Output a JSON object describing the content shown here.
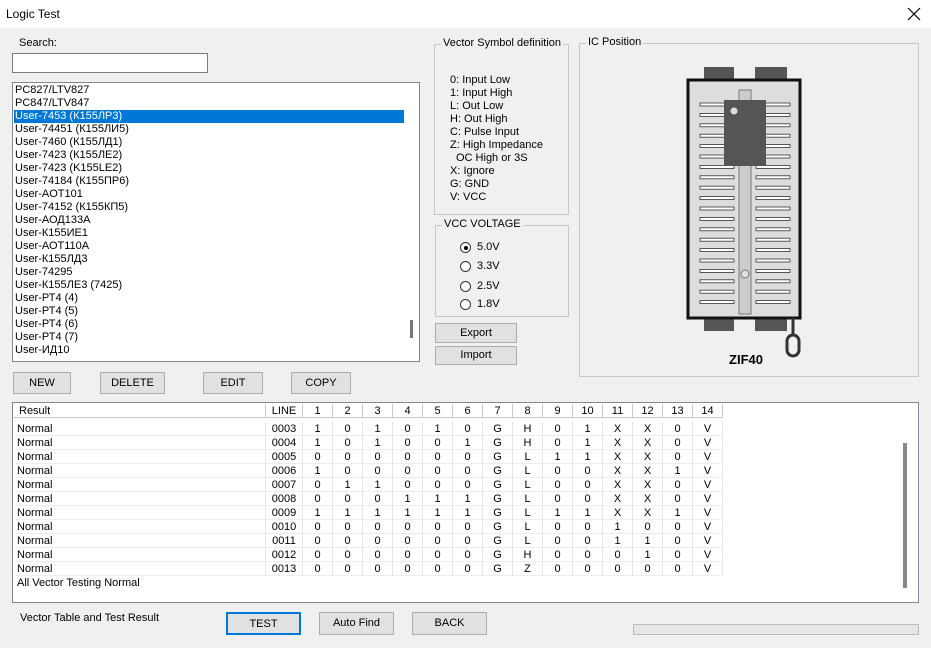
{
  "window": {
    "title": "Logic Test"
  },
  "search": {
    "label": "Search:"
  },
  "device_list": {
    "items": [
      "PC827/LTV827",
      "PC847/LTV847",
      "User-7453 (К155ЛР3)",
      "User-74451 (К155ЛИ5)",
      "User-7460 (К155ЛД1)",
      "User-7423 (К155ЛЕ2)",
      "User-7423 (K155LE2)",
      "User-74184 (К155ПР6)",
      "User-AOT101",
      "User-74152 (К155КП5)",
      "User-АОД133А",
      "User-К155ИЕ1",
      "User-АОТ110А",
      "User-К155ЛД3",
      "User-74295",
      "User-К155ЛЕ3 (7425)",
      "User-РТ4 (4)",
      "User-РТ4 (5)",
      "User-РТ4 (6)",
      "User-РТ4 (7)",
      "User-ИД10"
    ],
    "selected_index": 2
  },
  "vector_symbols": {
    "title": "Vector Symbol definition",
    "lines": [
      "0: Input Low",
      "1: Input High",
      "L: Out Low",
      "H: Out High",
      "C: Pulse Input",
      "Z: High Impedance",
      "OC High or 3S",
      "X: Ignore",
      "G: GND",
      "V: VCC"
    ]
  },
  "vcc_voltage": {
    "title": "VCC VOLTAGE",
    "options": [
      "5.0V",
      "3.3V",
      "2.5V",
      "1.8V"
    ],
    "selected_index": 0
  },
  "ic_position": {
    "title": "IC Position",
    "socket": "ZIF40"
  },
  "buttons": {
    "export": "Export",
    "import": "Import",
    "new": "NEW",
    "delete": "DELETE",
    "edit": "EDIT",
    "copy": "COPY",
    "test": "TEST",
    "auto_find": "Auto Find",
    "back": "BACK"
  },
  "table": {
    "columns": [
      "Result",
      "LINE",
      "1",
      "2",
      "3",
      "4",
      "5",
      "6",
      "7",
      "8",
      "9",
      "10",
      "11",
      "12",
      "13",
      "14"
    ],
    "rows": [
      [
        "Normal",
        "0003",
        "1",
        "0",
        "1",
        "0",
        "1",
        "0",
        "G",
        "H",
        "0",
        "1",
        "X",
        "X",
        "0",
        "V"
      ],
      [
        "Normal",
        "0004",
        "1",
        "0",
        "1",
        "0",
        "0",
        "1",
        "G",
        "H",
        "0",
        "1",
        "X",
        "X",
        "0",
        "V"
      ],
      [
        "Normal",
        "0005",
        "0",
        "0",
        "0",
        "0",
        "0",
        "0",
        "G",
        "L",
        "1",
        "1",
        "X",
        "X",
        "0",
        "V"
      ],
      [
        "Normal",
        "0006",
        "1",
        "0",
        "0",
        "0",
        "0",
        "0",
        "G",
        "L",
        "0",
        "0",
        "X",
        "X",
        "1",
        "V"
      ],
      [
        "Normal",
        "0007",
        "0",
        "1",
        "1",
        "0",
        "0",
        "0",
        "G",
        "L",
        "0",
        "0",
        "X",
        "X",
        "0",
        "V"
      ],
      [
        "Normal",
        "0008",
        "0",
        "0",
        "0",
        "1",
        "1",
        "1",
        "G",
        "L",
        "0",
        "0",
        "X",
        "X",
        "0",
        "V"
      ],
      [
        "Normal",
        "0009",
        "1",
        "1",
        "1",
        "1",
        "1",
        "1",
        "G",
        "L",
        "1",
        "1",
        "X",
        "X",
        "1",
        "V"
      ],
      [
        "Normal",
        "0010",
        "0",
        "0",
        "0",
        "0",
        "0",
        "0",
        "G",
        "L",
        "0",
        "0",
        "1",
        "0",
        "0",
        "V"
      ],
      [
        "Normal",
        "0011",
        "0",
        "0",
        "0",
        "0",
        "0",
        "0",
        "G",
        "L",
        "0",
        "0",
        "1",
        "1",
        "0",
        "V"
      ],
      [
        "Normal",
        "0012",
        "0",
        "0",
        "0",
        "0",
        "0",
        "0",
        "G",
        "H",
        "0",
        "0",
        "0",
        "1",
        "0",
        "V"
      ],
      [
        "Normal",
        "0013",
        "0",
        "0",
        "0",
        "0",
        "0",
        "0",
        "G",
        "Z",
        "0",
        "0",
        "0",
        "0",
        "0",
        "V"
      ]
    ],
    "summary": "All Vector Testing Normal"
  },
  "footer": {
    "label": "Vector Table and Test Result"
  }
}
